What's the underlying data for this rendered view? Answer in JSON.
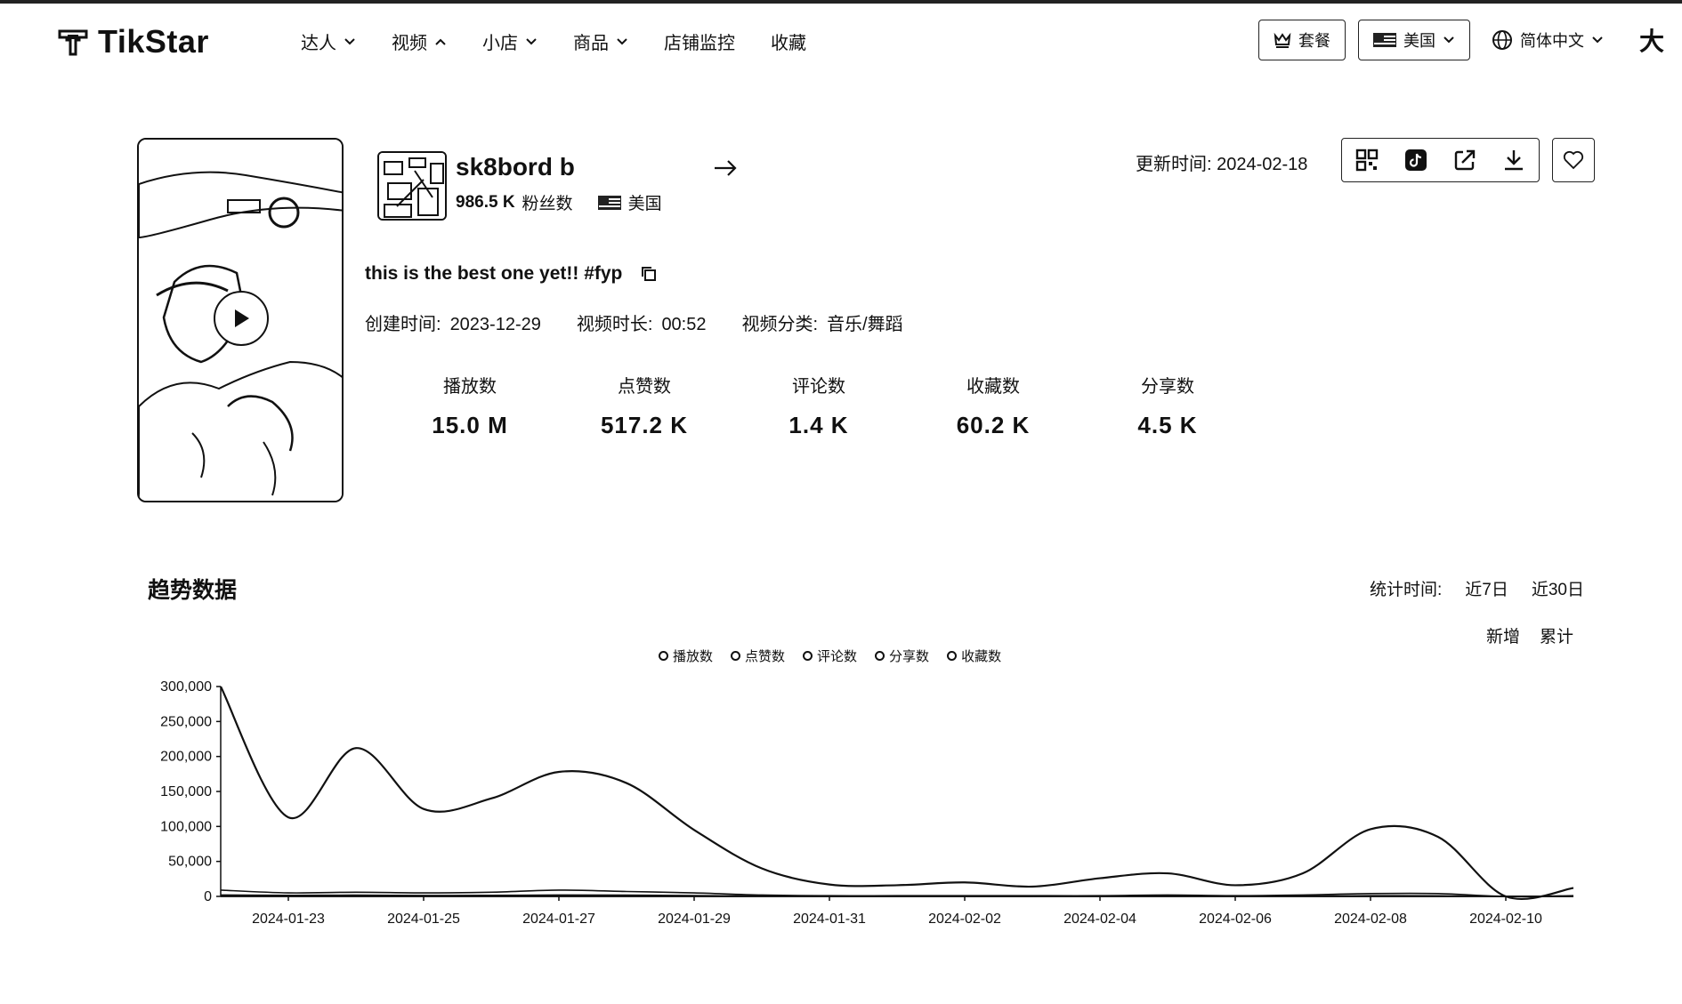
{
  "header": {
    "brand": "TikStar",
    "nav": [
      {
        "label": "达人",
        "chevron": "down"
      },
      {
        "label": "视频",
        "chevron": "up"
      },
      {
        "label": "小店",
        "chevron": "down"
      },
      {
        "label": "商品",
        "chevron": "down"
      },
      {
        "label": "店铺监控",
        "chevron": ""
      },
      {
        "label": "收藏",
        "chevron": ""
      }
    ],
    "plan_label": "套餐",
    "region_label": "美国",
    "language_label": "简体中文",
    "user_label": "大"
  },
  "video": {
    "author_name": "sk8bord b",
    "fans_count": "986.5 K",
    "fans_label": "粉丝数",
    "country": "美国",
    "update_label": "更新时间:",
    "update_time": "2024-02-18",
    "description": "this is the best one yet!! #fyp",
    "created_label": "创建时间:",
    "created_value": "2023-12-29",
    "duration_label": "视频时长:",
    "duration_value": "00:52",
    "category_label": "视频分类:",
    "category_value": "音乐/舞蹈",
    "stats": [
      {
        "label": "播放数",
        "value": "15.0 M"
      },
      {
        "label": "点赞数",
        "value": "517.2 K"
      },
      {
        "label": "评论数",
        "value": "1.4 K"
      },
      {
        "label": "收藏数",
        "value": "60.2 K"
      },
      {
        "label": "分享数",
        "value": "4.5 K"
      }
    ],
    "tools": [
      "qrcode-icon",
      "tiktok-icon",
      "external-link-icon",
      "download-icon"
    ],
    "favorite_icon": "heart-icon"
  },
  "trend": {
    "title": "趋势数据",
    "period_label": "统计时间:",
    "period_options": [
      "近7日",
      "近30日"
    ],
    "mode_options": [
      "新增",
      "累计"
    ]
  },
  "chart_data": {
    "type": "line",
    "ylim": [
      0,
      300000
    ],
    "yticks": [
      "300,000",
      "250,000",
      "200,000",
      "150,000",
      "100,000",
      "50,000",
      "0"
    ],
    "x": [
      "2024-01-22",
      "2024-01-23",
      "2024-01-24",
      "2024-01-25",
      "2024-01-26",
      "2024-01-27",
      "2024-01-28",
      "2024-01-29",
      "2024-01-30",
      "2024-01-31",
      "2024-02-01",
      "2024-02-02",
      "2024-02-03",
      "2024-02-04",
      "2024-02-05",
      "2024-02-06",
      "2024-02-07",
      "2024-02-08",
      "2024-02-09",
      "2024-02-10",
      "2024-02-11"
    ],
    "xticks": [
      "2024-01-23",
      "2024-01-25",
      "2024-01-27",
      "2024-01-29",
      "2024-01-31",
      "2024-02-02",
      "2024-02-04",
      "2024-02-06",
      "2024-02-08",
      "2024-02-10"
    ],
    "series": [
      {
        "name": "播放数",
        "values": [
          300000,
          113000,
          212000,
          125000,
          140000,
          178000,
          162000,
          95000,
          40000,
          17000,
          16000,
          20000,
          14000,
          26000,
          33000,
          16000,
          33000,
          96000,
          85000,
          0,
          12000
        ]
      },
      {
        "name": "点赞数",
        "values": [
          9000,
          5000,
          6000,
          5000,
          6000,
          9000,
          7000,
          5000,
          2000,
          1000,
          1000,
          1000,
          1000,
          1000,
          2000,
          1000,
          2000,
          4000,
          4000,
          0,
          1000
        ]
      },
      {
        "name": "评论数",
        "values": [
          200,
          100,
          100,
          100,
          100,
          100,
          100,
          100,
          100,
          0,
          0,
          0,
          0,
          0,
          0,
          0,
          0,
          100,
          100,
          0,
          0
        ]
      },
      {
        "name": "分享数",
        "values": [
          100,
          100,
          100,
          100,
          100,
          100,
          100,
          100,
          0,
          0,
          0,
          0,
          0,
          0,
          0,
          0,
          0,
          100,
          100,
          0,
          0
        ]
      },
      {
        "name": "收藏数",
        "values": [
          2000,
          1500,
          1800,
          1300,
          1500,
          2000,
          1800,
          1200,
          500,
          300,
          300,
          300,
          300,
          400,
          500,
          300,
          500,
          1000,
          900,
          0,
          300
        ]
      }
    ]
  }
}
